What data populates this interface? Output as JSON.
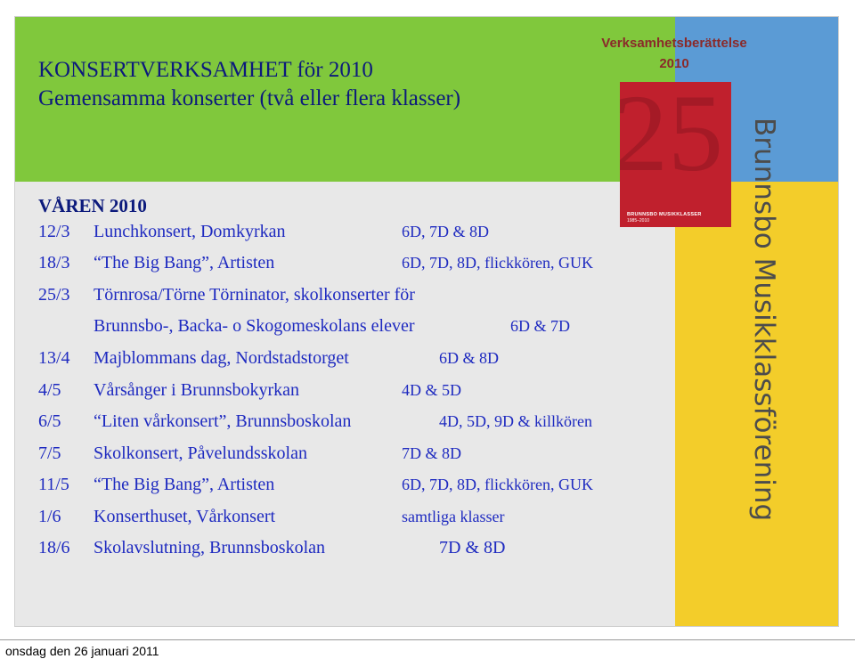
{
  "title": {
    "line1": "KONSERTVERKSAMHET för 2010",
    "line2": "Gemensamma konserter (två eller flera klasser)"
  },
  "report": {
    "title_line1": "Verksamhetsberättelse",
    "title_line2": "2010",
    "cover_number": "25",
    "cover_line1": "BRUNNSBO MUSIKKLASSER",
    "cover_line2": "1985–2010"
  },
  "side_text": "Brunnsbo Musikklassförening",
  "season": "VÅREN 2010",
  "events": [
    {
      "date": "12/3",
      "name": "Lunchkonsert, Domkyrkan",
      "classes": "6D, 7D & 8D"
    },
    {
      "date": "18/3",
      "name": "“The Big Bang”, Artisten",
      "classes": "6D, 7D, 8D, flickkören, GUK"
    },
    {
      "date": "25/3",
      "name": "Törnrosa/Törne Törninator, skolkonserter för",
      "classes": ""
    },
    {
      "date": "",
      "name": "Brunnsbo-, Backa- o Skogomeskolans elever",
      "classes": "6D & 7D"
    },
    {
      "date": "13/4",
      "name": "Majblommans dag, Nordstadstorget",
      "classes": "6D & 8D"
    },
    {
      "date": "4/5",
      "name": "Vårsånger i Brunnsbokyrkan",
      "classes": "4D & 5D"
    },
    {
      "date": "6/5",
      "name": "“Liten vårkonsert”, Brunnsboskolan",
      "classes": "4D, 5D, 9D & killkören"
    },
    {
      "date": "7/5",
      "name": "Skolkonsert, Påvelundsskolan",
      "classes": "7D & 8D"
    },
    {
      "date": "11/5",
      "name": "“The Big Bang”, Artisten",
      "classes": "6D, 7D, 8D, flickkören, GUK"
    },
    {
      "date": "1/6",
      "name": "Konserthuset, Vårkonsert",
      "classes": "samtliga klasser"
    },
    {
      "date": "18/6",
      "name": "Skolavslutning, Brunnsboskolan",
      "classes": "7D & 8D"
    }
  ],
  "footer": "onsdag den 26 januari 2011"
}
